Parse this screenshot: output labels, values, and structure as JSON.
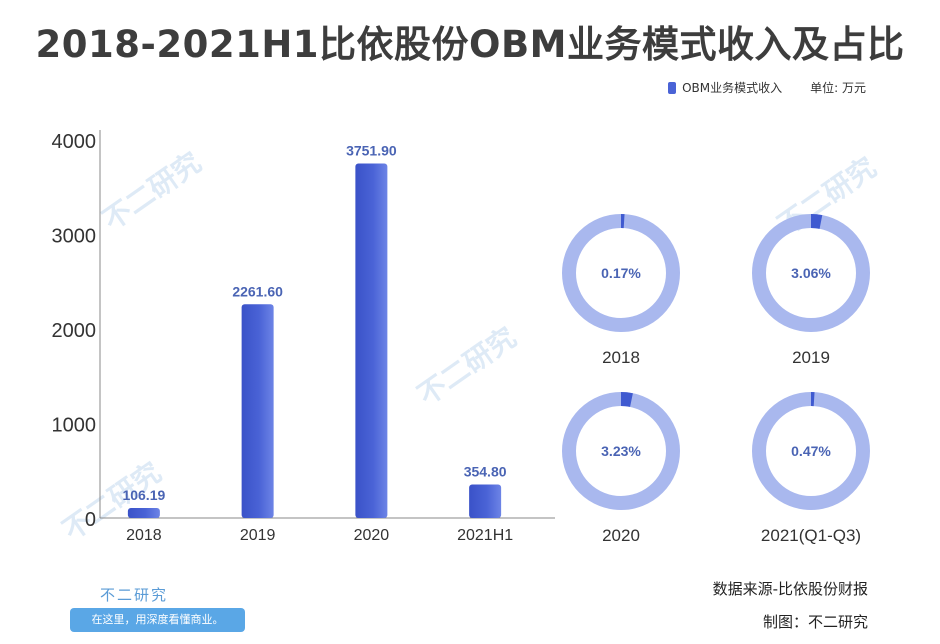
{
  "chart_data": [
    {
      "type": "bar",
      "title": "2018-2021H1比依股份OBM业务模式收入及占比",
      "legend": "OBM业务模式收入",
      "unit_label": "单位: 万元",
      "categories": [
        "2018",
        "2019",
        "2020",
        "2021H1"
      ],
      "values": [
        106.19,
        2261.6,
        3751.9,
        354.8
      ],
      "value_labels": [
        "106.19",
        "2261.60",
        "3751.90",
        "354.80"
      ],
      "yticks": [
        "0",
        "1000",
        "2000",
        "3000",
        "4000"
      ],
      "ylim": [
        0,
        4000
      ],
      "color": "#4a63d6",
      "legend_position": "top-right"
    },
    {
      "type": "pie",
      "style": "donut",
      "items": [
        {
          "label": "2018",
          "percent": 0.17,
          "percent_label": "0.17%"
        },
        {
          "label": "2019",
          "percent": 3.06,
          "percent_label": "3.06%"
        },
        {
          "label": "2020",
          "percent": 3.23,
          "percent_label": "3.23%"
        },
        {
          "label": "2021(Q1-Q3)",
          "percent": 0.47,
          "percent_label": "0.47%"
        }
      ],
      "ring_color": "#a9b8ee",
      "highlight_color": "#3f5ad0"
    }
  ],
  "watermark_text": "不二研究",
  "footer": {
    "brand": "不二研究",
    "slogan": "在这里，用深度看懂商业。",
    "source": "数据来源-比依股份财报",
    "credit": "制图：不二研究"
  }
}
